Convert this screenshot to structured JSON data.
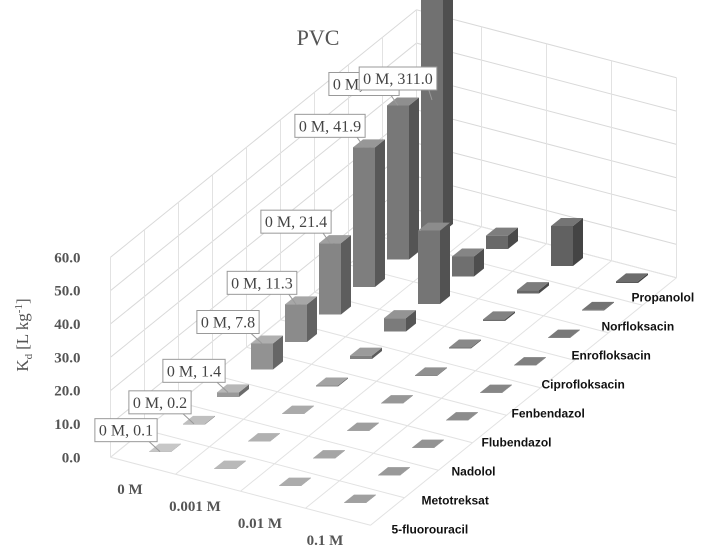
{
  "chart_data": {
    "type": "bar3d",
    "title": "PVC",
    "y_label": {
      "symbol": "K",
      "subscript": "d",
      "unit": "[L kg",
      "superscript": "-1",
      "close": "]"
    },
    "categories": [
      "5-fluorouracil",
      "Metotreksat",
      "Nadolol",
      "Flubendazol",
      "Fenbendazol",
      "Ciprofloksacin",
      "Enrofloksacin",
      "Norfloksacin",
      "Propanolol"
    ],
    "series": [
      {
        "name": "0 M",
        "color": "#a6a6a6",
        "values": [
          0.1,
          0.2,
          1.4,
          7.8,
          11.3,
          21.4,
          41.9,
          46.2,
          311.0
        ],
        "value_labels": [
          "0 M, 0.1",
          "0 M, 0.2",
          "0 M, 1.4",
          "0 M, 7.8",
          "0 M, 11.3",
          "0 M, 21.4",
          "0 M, 41.9",
          "0 M, 46.2",
          "0 M, 311.0"
        ]
      },
      {
        "name": "0.001 M",
        "color": "#9a9a9a",
        "values": [
          0.1,
          0.1,
          0.1,
          0.3,
          1.0,
          4.0,
          22.0,
          6.0,
          4.0
        ]
      },
      {
        "name": "0.01 M",
        "color": "#8f8f8f",
        "values": [
          0.1,
          0.1,
          0.1,
          0.1,
          0.2,
          0.3,
          0.5,
          1.0,
          12.0
        ]
      },
      {
        "name": "0.1 M",
        "color": "#858585",
        "values": [
          0.1,
          0.1,
          0.1,
          0.1,
          0.1,
          0.1,
          0.1,
          0.2,
          0.5
        ]
      }
    ],
    "ylim": [
      0,
      60
    ],
    "yticks": [
      {
        "value": 0,
        "label": "0.0"
      },
      {
        "value": 10,
        "label": "10.0"
      },
      {
        "value": 20,
        "label": "20.0"
      },
      {
        "value": 30,
        "label": "30.0"
      },
      {
        "value": 40,
        "label": "40.0"
      },
      {
        "value": 50,
        "label": "50.0"
      },
      {
        "value": 60,
        "label": "60.0"
      }
    ],
    "grid": true
  }
}
